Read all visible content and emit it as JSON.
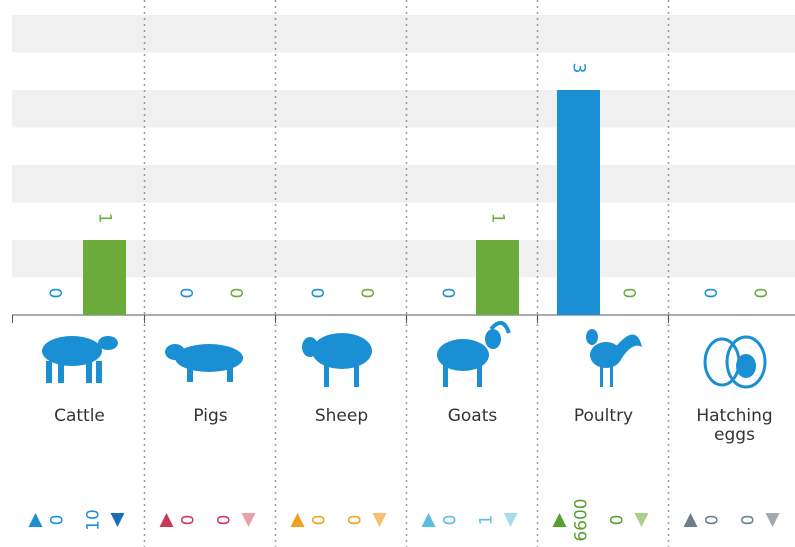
{
  "chart_data": {
    "type": "bar",
    "categories": [
      "Cattle",
      "Pigs",
      "Sheep",
      "Goats",
      "Poultry",
      "Hatching eggs"
    ],
    "series": [
      {
        "color": "#1a8fd4",
        "values": [
          0,
          0,
          0,
          0,
          3,
          0
        ]
      },
      {
        "color": "#6aab3a",
        "values": [
          1,
          0,
          0,
          1,
          0,
          0
        ]
      }
    ],
    "ylim": [
      0,
      4
    ],
    "footer": {
      "values_up": [
        0,
        0,
        0,
        0,
        6600,
        0
      ],
      "values_down": [
        10,
        0,
        0,
        1,
        0,
        0
      ],
      "up_colors": [
        "#1a8fd4",
        "#c8385a",
        "#f0a020",
        "#5bbde0",
        "#5a9e32",
        "#6b7f8a"
      ],
      "down_colors": [
        "#1a6fb0",
        "#e8a0ad",
        "#f5c070",
        "#a8dcea",
        "#a9cf8a",
        "#a0aab0"
      ]
    }
  }
}
